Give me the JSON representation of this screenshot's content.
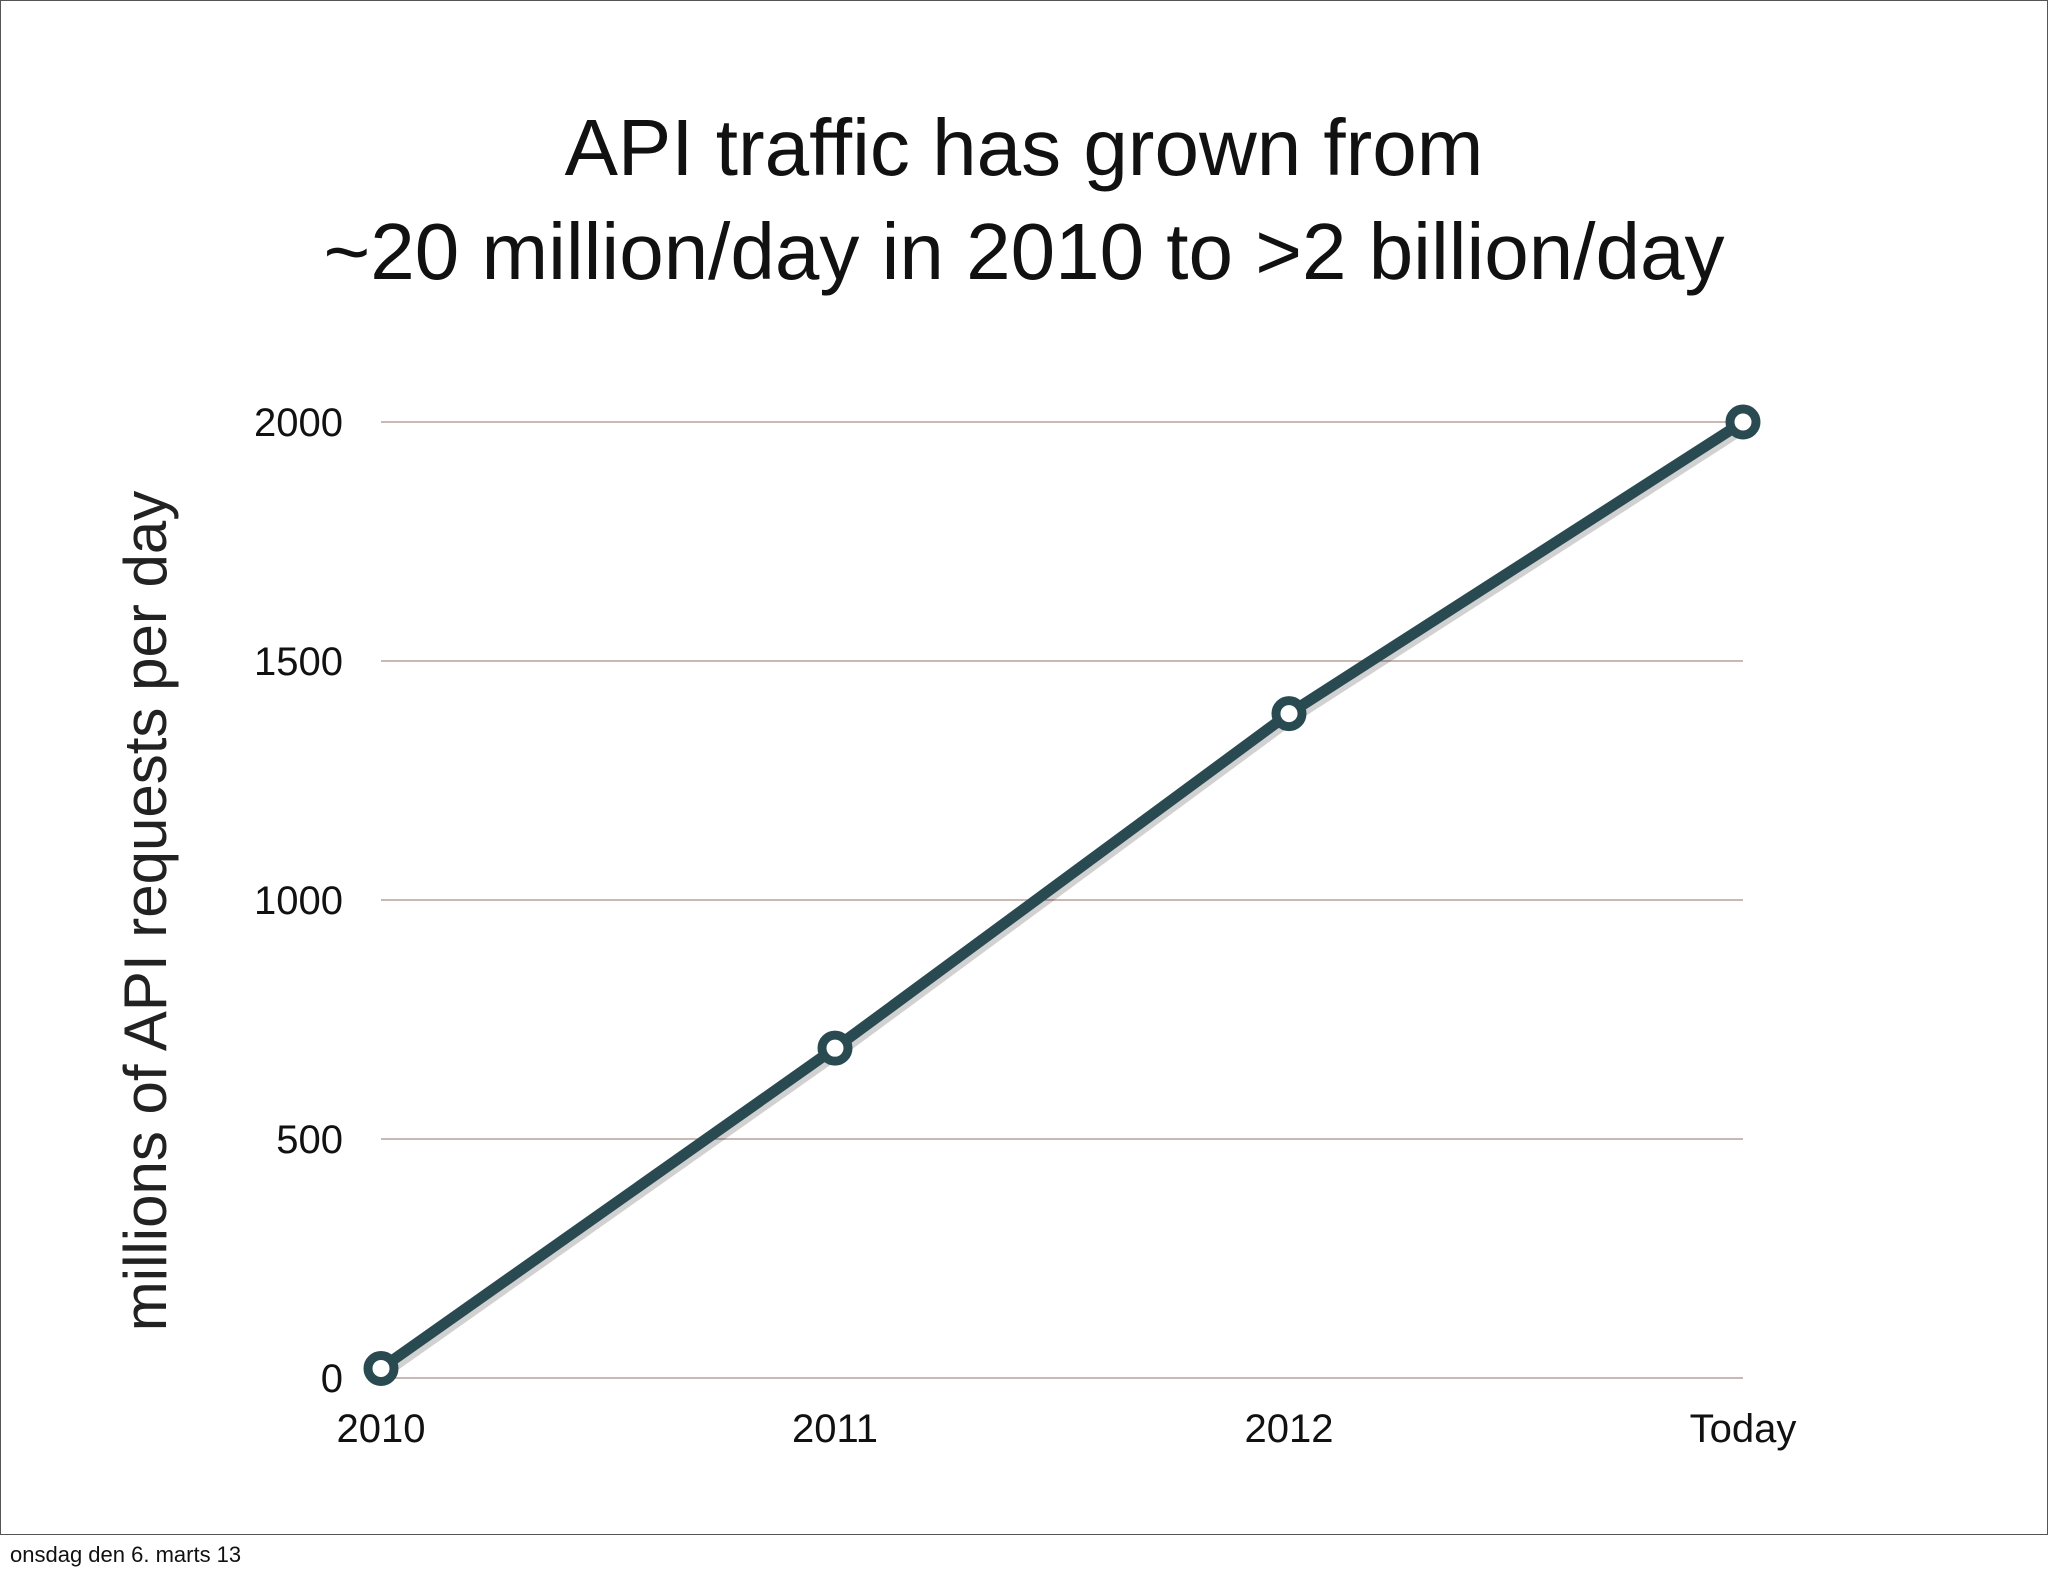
{
  "chart_data": {
    "type": "line",
    "title_lines": [
      "API traffic has grown from",
      "~20 million/day in 2010 to >2 billion/day"
    ],
    "categories": [
      "2010",
      "2011",
      "2012",
      "Today"
    ],
    "series": [
      {
        "values": [
          20,
          690,
          1390,
          2000
        ]
      }
    ],
    "ylabel": "millions of API requests per day",
    "xlabel": "",
    "ylim": [
      0,
      2000
    ],
    "yticks": [
      0,
      500,
      1000,
      1500,
      2000
    ],
    "grid": true,
    "legend": "none",
    "colors": {
      "line": "#2a4a52",
      "marker_fill": "#ffffff",
      "grid": "#b9a09a",
      "text": "#111111"
    }
  },
  "footer": {
    "date": "onsdag den 6. marts 13"
  }
}
